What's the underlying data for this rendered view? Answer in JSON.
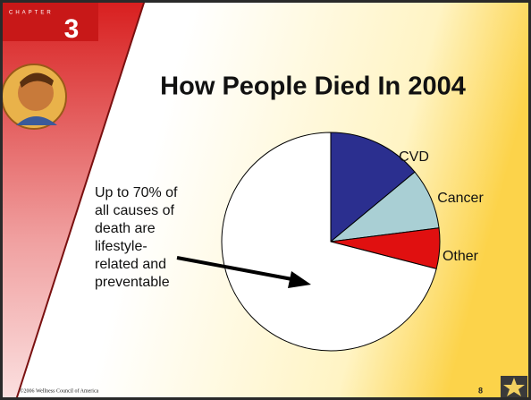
{
  "chart_data": {
    "type": "pie",
    "title": "How People Died In 2004",
    "categories": [
      "CVD",
      "Cancer",
      "Other",
      null
    ],
    "values": [
      14,
      9,
      6,
      71
    ],
    "colors": [
      "#2b2f8f",
      "#a9cfd4",
      "#e01010",
      "#ffffff"
    ],
    "annotation": [
      "Up to 70% of",
      "all causes of",
      "death are",
      "lifestyle-",
      "related and",
      "preventable"
    ]
  },
  "slide": {
    "chapter_label": "CHAPTER",
    "chapter_number": "3",
    "footer": "©2006 Wellness Council of America",
    "page_number": "8"
  }
}
